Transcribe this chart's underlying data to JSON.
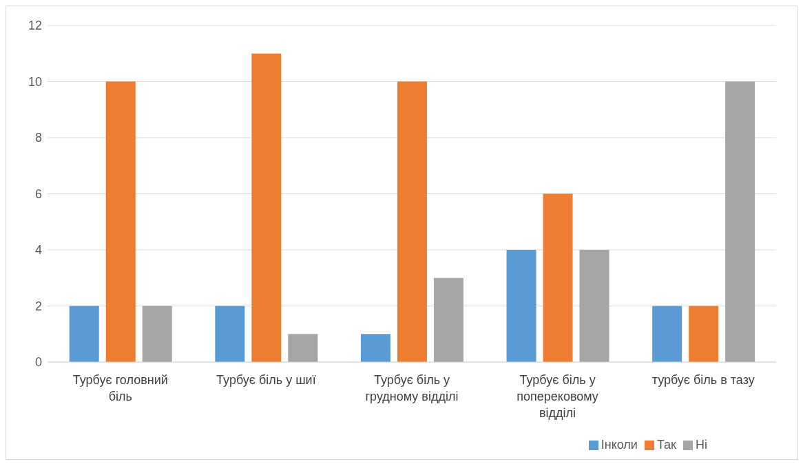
{
  "chart_data": {
    "type": "bar",
    "categories": [
      "Турбує головний біль",
      "Турбує біль у шиї",
      "Турбує біль у грудному відділі",
      "Турбує біль у поперековому відділі",
      "турбує біль в тазу"
    ],
    "series": [
      {
        "name": "Інколи",
        "color": "#5b9bd5",
        "values": [
          2,
          2,
          1,
          4,
          2
        ]
      },
      {
        "name": "Так",
        "color": "#ed7d31",
        "values": [
          10,
          11,
          10,
          6,
          2
        ]
      },
      {
        "name": "Ні",
        "color": "#a5a5a5",
        "values": [
          2,
          1,
          3,
          4,
          10
        ]
      }
    ],
    "ylim": [
      0,
      12
    ],
    "yticks": [
      0,
      2,
      4,
      6,
      8,
      10,
      12
    ],
    "grid": "y",
    "legend": "bottom"
  }
}
